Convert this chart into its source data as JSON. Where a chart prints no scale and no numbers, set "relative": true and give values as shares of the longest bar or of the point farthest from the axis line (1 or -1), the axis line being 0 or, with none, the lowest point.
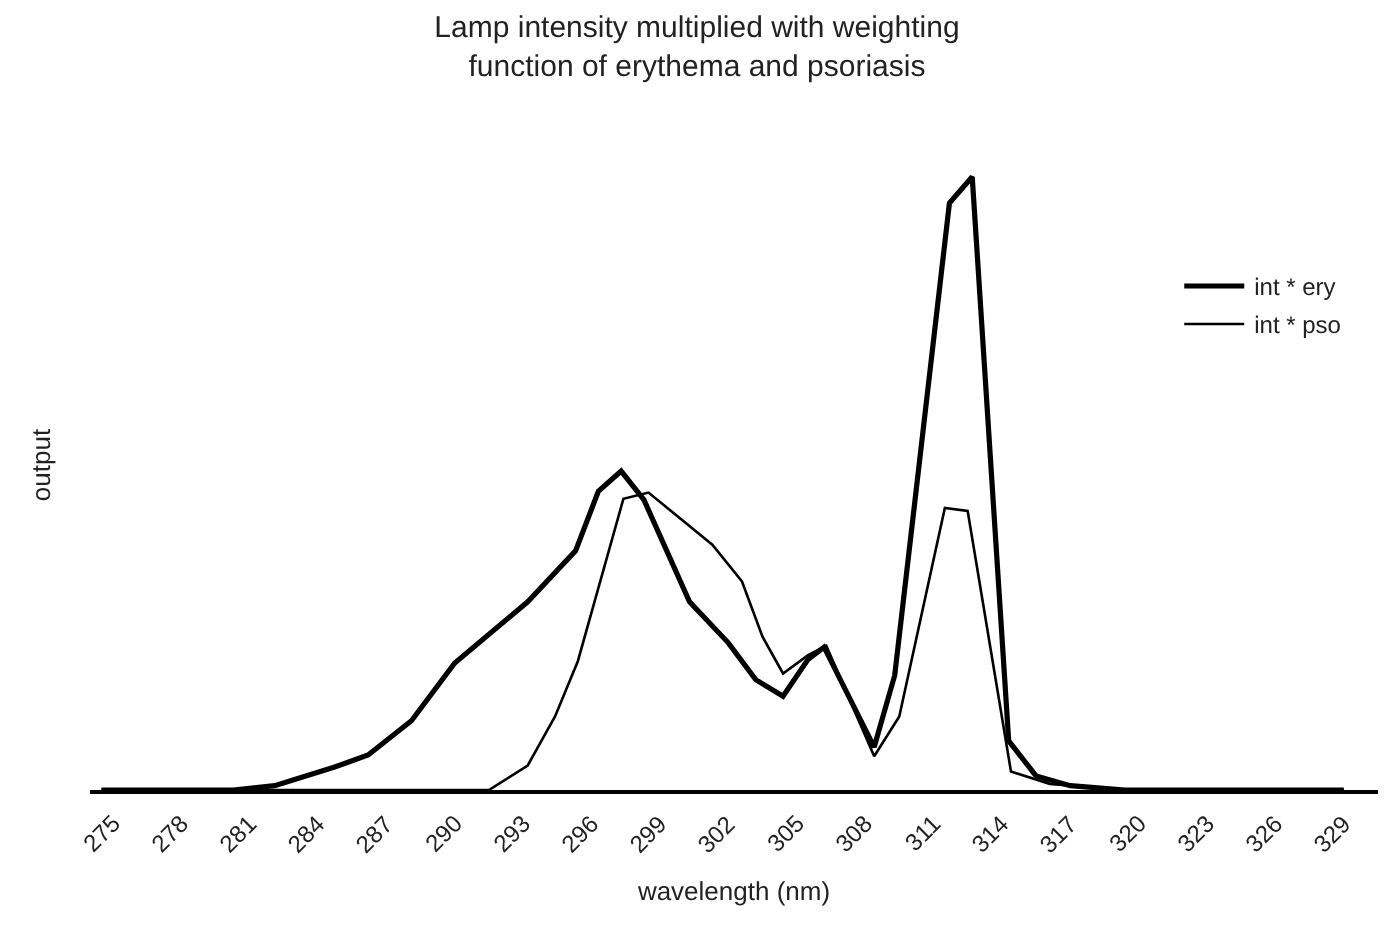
{
  "chart_data": {
    "type": "line",
    "title": "Lamp intensity multiplied with weighting function of erythema and psoriasis",
    "xlabel": "wavelength (nm)",
    "ylabel": "output",
    "relative": true,
    "xlim": [
      274.5,
      331
    ],
    "xticks": [
      275,
      278,
      281,
      284,
      287,
      290,
      293,
      296,
      299,
      302,
      305,
      308,
      311,
      314,
      317,
      320,
      323,
      326,
      329
    ],
    "legend": "top right",
    "marker": "none",
    "line_style": "solid",
    "series": [
      {
        "name": "int * ery",
        "color": "#000000",
        "x": [
          275,
          280.8,
          282.6,
          285.2,
          286.7,
          288.6,
          290.5,
          293.7,
          295.8,
          296.8,
          297.8,
          298.8,
          300.8,
          302.5,
          303.7,
          304.9,
          306.0,
          306.7,
          308.9,
          309.8,
          312.2,
          313.2,
          314.8,
          316.0,
          317.5,
          319.9,
          329.5
        ],
        "values": [
          0,
          0,
          0.007,
          0.037,
          0.057,
          0.113,
          0.207,
          0.307,
          0.39,
          0.487,
          0.52,
          0.473,
          0.307,
          0.24,
          0.18,
          0.153,
          0.213,
          0.233,
          0.07,
          0.187,
          0.957,
          1.0,
          0.08,
          0.023,
          0.007,
          0,
          0
        ]
      },
      {
        "name": "int * pso",
        "color": "#000000",
        "x": [
          275,
          292.0,
          293.7,
          294.9,
          295.9,
          297.9,
          299.0,
          301.8,
          303.1,
          304.0,
          304.9,
          306.0,
          306.8,
          308.9,
          310.0,
          312.0,
          313.0,
          314.9,
          316.6,
          319.9,
          329.5
        ],
        "values": [
          0,
          0,
          0.04,
          0.12,
          0.21,
          0.475,
          0.485,
          0.4,
          0.34,
          0.25,
          0.19,
          0.22,
          0.235,
          0.055,
          0.12,
          0.46,
          0.455,
          0.03,
          0.01,
          0,
          0
        ]
      }
    ]
  }
}
